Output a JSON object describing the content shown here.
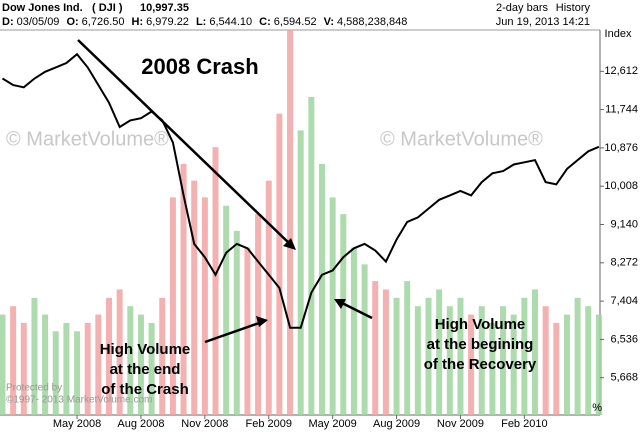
{
  "header": {
    "name": "Dow Jones Ind.",
    "symbol": "( DJI )",
    "last": "10,997.35",
    "bars": "2-day bars",
    "history": "History",
    "datetime": "Jun 19, 2013 14:21",
    "quote": [
      {
        "label": "D:",
        "value": "03/05/09"
      },
      {
        "label": "O:",
        "value": "6,726.50"
      },
      {
        "label": "H:",
        "value": "6,979.22"
      },
      {
        "label": "L:",
        "value": "6,544.10"
      },
      {
        "label": "C:",
        "value": "6,594.52"
      },
      {
        "label": "V:",
        "value": "4,588,238,848"
      }
    ]
  },
  "chart_data": {
    "type": "line",
    "y_axis_label": "Index",
    "percent_label": "%",
    "title": "2008 Crash",
    "annotations": [
      [
        "High Volume",
        "at the end",
        "of the Crash"
      ],
      [
        "High Volume",
        "at the begining",
        "of the Recovery"
      ]
    ],
    "watermarks": [
      "© MarketVolume®",
      "© MarketVolume®"
    ],
    "footer": [
      "Protected by",
      "©1997- 2013 MarketVolume.com"
    ],
    "categories": [
      null,
      null,
      null,
      null,
      null,
      null,
      null,
      "May 2008",
      null,
      null,
      null,
      null,
      null,
      "Aug 2008",
      null,
      null,
      null,
      null,
      null,
      "Nov 2008",
      null,
      null,
      null,
      null,
      null,
      "Feb 2009",
      null,
      null,
      null,
      null,
      null,
      "May 2009",
      null,
      null,
      null,
      null,
      null,
      "Aug 2009",
      null,
      null,
      null,
      null,
      null,
      "Nov 2009",
      null,
      null,
      null,
      null,
      null,
      "Feb 2010",
      null,
      null,
      null,
      null,
      null,
      null,
      null
    ],
    "series": [
      {
        "name": "Dow Jones Ind.",
        "color": "#000000",
        "values": [
          12450,
          12300,
          12250,
          12450,
          12600,
          12700,
          12800,
          13000,
          12700,
          12300,
          11900,
          11350,
          11500,
          11550,
          11700,
          11500,
          11000,
          9800,
          8700,
          8400,
          8000,
          8500,
          8700,
          8600,
          8300,
          8000,
          7700,
          6800,
          6800,
          7600,
          8000,
          8100,
          8400,
          8600,
          8700,
          8550,
          8300,
          8800,
          9200,
          9300,
          9500,
          9700,
          9800,
          9900,
          9800,
          10100,
          10300,
          10350,
          10500,
          10550,
          10600,
          10100,
          10050,
          10400,
          10600,
          10800,
          10900
        ]
      },
      {
        "name": "Volume",
        "up_color": "#9fd59f",
        "down_color": "#f2a3a3",
        "values": [
          1.2,
          1.3,
          1.1,
          1.4,
          1.2,
          1.0,
          1.1,
          1.0,
          1.1,
          1.2,
          1.4,
          1.5,
          1.3,
          1.2,
          1.1,
          1.4,
          2.6,
          3.0,
          2.8,
          2.6,
          3.2,
          2.5,
          2.2,
          2.0,
          2.4,
          2.8,
          3.6,
          4.6,
          3.4,
          3.8,
          3.0,
          2.6,
          2.4,
          2.0,
          1.8,
          1.6,
          1.5,
          1.4,
          1.6,
          1.3,
          1.4,
          1.5,
          1.3,
          1.4,
          1.2,
          1.3,
          1.1,
          1.3,
          1.2,
          1.4,
          1.5,
          1.3,
          1.1,
          1.2,
          1.4,
          1.3,
          1.2
        ]
      }
    ],
    "ylim": [
      4823,
      13548
    ],
    "yticks": [
      {
        "value": 5668,
        "label": "5,668"
      },
      {
        "value": 6536,
        "label": "6,536"
      },
      {
        "value": 7404,
        "label": "7,404"
      },
      {
        "value": 8272,
        "label": "8,272"
      },
      {
        "value": 9140,
        "label": "9,140"
      },
      {
        "value": 10008,
        "label": "10,008"
      },
      {
        "value": 10876,
        "label": "10,876"
      },
      {
        "value": 11744,
        "label": "11,744"
      },
      {
        "value": 12612,
        "label": "12,612"
      }
    ]
  }
}
